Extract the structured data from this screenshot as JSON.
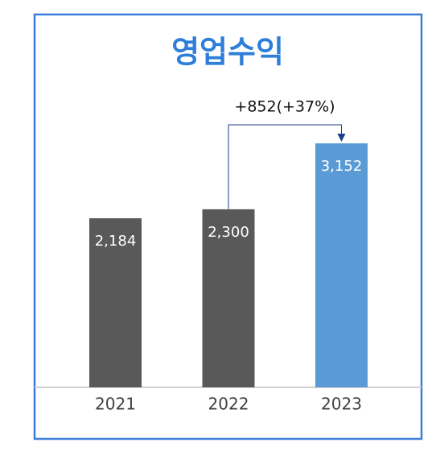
{
  "chart_data": {
    "type": "bar",
    "title": "영업수익",
    "categories": [
      "2021",
      "2022",
      "2023"
    ],
    "values": [
      2184,
      2300,
      3152
    ],
    "value_labels": [
      "2,184",
      "2,300",
      "3,152"
    ],
    "colors": [
      "#595959",
      "#595959",
      "#5b9bd5"
    ],
    "annotation": "+852(+37%)"
  }
}
